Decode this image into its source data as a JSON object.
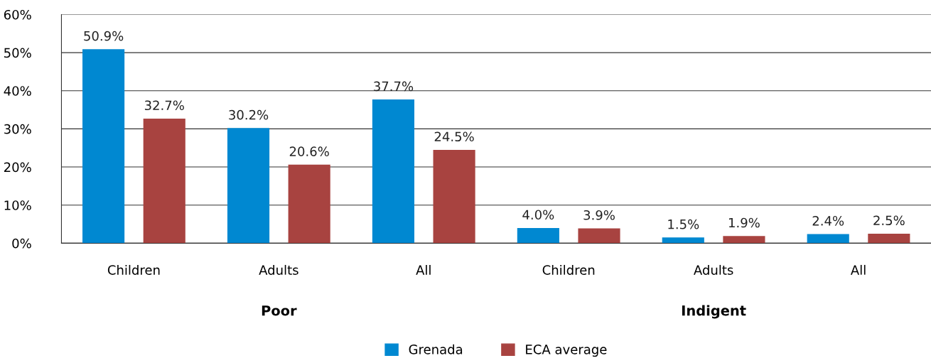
{
  "chart_data": {
    "type": "bar",
    "categories": [
      "Children",
      "Adults",
      "All",
      "Children",
      "Adults",
      "All"
    ],
    "series": [
      {
        "name": "Grenada",
        "color": "#0088d1",
        "values": [
          50.9,
          30.2,
          37.7,
          4.0,
          1.5,
          2.4
        ],
        "value_labels": [
          "50.9%",
          "30.2%",
          "37.7%",
          "4.0%",
          "1.5%",
          "2.4%"
        ]
      },
      {
        "name": "ECA average",
        "color": "#a84340",
        "values": [
          32.7,
          20.6,
          24.5,
          3.9,
          1.9,
          2.5
        ],
        "value_labels": [
          "32.7%",
          "20.6%",
          "24.5%",
          "3.9%",
          "1.9%",
          "2.5%"
        ]
      }
    ],
    "ylim": [
      0,
      60
    ],
    "yticks": [
      {
        "value": 0,
        "label": "0%"
      },
      {
        "value": 10,
        "label": "10%"
      },
      {
        "value": 20,
        "label": "20%"
      },
      {
        "value": 30,
        "label": "30%"
      },
      {
        "value": 40,
        "label": "40%"
      },
      {
        "value": 50,
        "label": "50%"
      },
      {
        "value": 60,
        "label": "60%"
      }
    ],
    "grid": "y",
    "legend": "bottom",
    "annotations": [
      "Poor",
      "Indigent"
    ]
  }
}
